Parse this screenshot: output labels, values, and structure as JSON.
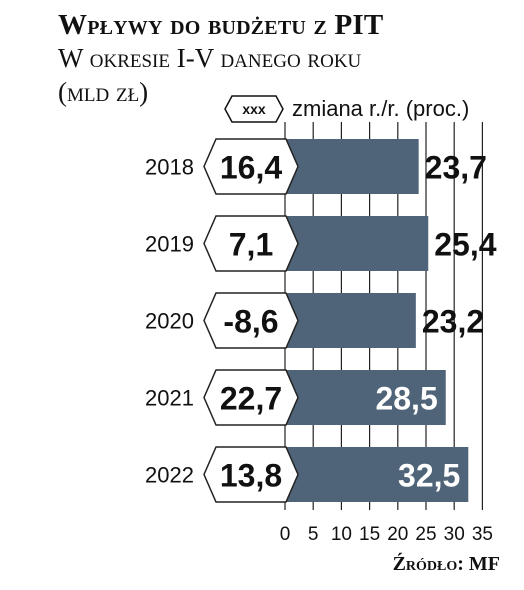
{
  "header": {
    "title": "Wpływy do budżetu z PIT",
    "subtitle": "W okresie I-V danego roku",
    "unit": "(mld zł)"
  },
  "legend": {
    "badge_text": "xxx",
    "label": "zmiana r./r. (proc.)"
  },
  "source": "Źródło: MF",
  "colors": {
    "bar": "#4f6478",
    "grid": "#222222",
    "text": "#111111",
    "badge_fill": "#ffffff"
  },
  "chart_data": {
    "type": "bar",
    "orientation": "horizontal",
    "categories": [
      "2018",
      "2019",
      "2020",
      "2021",
      "2022"
    ],
    "values": [
      23.7,
      25.4,
      23.2,
      28.5,
      32.5
    ],
    "value_labels": [
      "23,7",
      "25,4",
      "23,2",
      "28,5",
      "32,5"
    ],
    "change_labels": [
      "16,4",
      "7,1",
      "-8,6",
      "22,7",
      "13,8"
    ],
    "xlim": [
      0,
      35
    ],
    "xticks": [
      "0",
      "5",
      "10",
      "15",
      "20",
      "25",
      "30",
      "35"
    ],
    "grid": true
  }
}
